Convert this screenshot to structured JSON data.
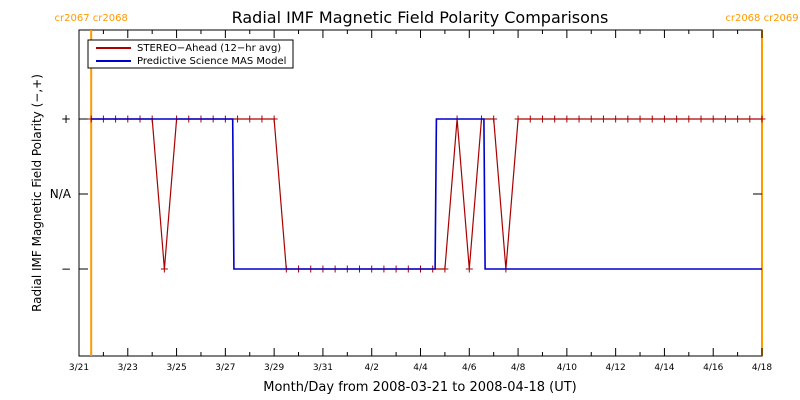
{
  "chart_data": {
    "type": "line",
    "title": "Radial IMF Magnetic Field Polarity Comparisons",
    "xlabel": "Month/Day from 2008-03-21 to 2008-04-18 (UT)",
    "ylabel": "Radial IMF Magnetic Field Polarity (−,+)",
    "x_range": [
      "2008-03-21",
      "2008-04-18"
    ],
    "x_tick_labels": [
      "3/21",
      "3/23",
      "3/25",
      "3/27",
      "3/29",
      "3/31",
      "4/2",
      "4/4",
      "4/6",
      "4/8",
      "4/10",
      "4/12",
      "4/14",
      "4/16",
      "4/18"
    ],
    "y_categories": [
      "−",
      "N/A",
      "+"
    ],
    "y_tick_labels": [
      "+",
      "N/A",
      "−"
    ],
    "legend_position": "top-left",
    "carrington_markers": [
      {
        "date": "2008-03-21T12:00",
        "labels": [
          "cr2067",
          "cr2068"
        ],
        "color": "#ff9900"
      },
      {
        "date": "2008-04-18T00:00",
        "labels": [
          "cr2068",
          "cr2069"
        ],
        "color": "#ff9900"
      }
    ],
    "series": [
      {
        "name": "STEREO−Ahead (12−hr avg)",
        "color": "#aa0000",
        "markers": true,
        "x": [
          0.5,
          1,
          1.5,
          2,
          2.5,
          3,
          3.5,
          4,
          4.5,
          5,
          5.5,
          6,
          6.5,
          7,
          7.5,
          8,
          8.5,
          9,
          9.5,
          10,
          10.5,
          11,
          11.5,
          12,
          12.5,
          13,
          13.5,
          14,
          14.5,
          15,
          15.5,
          16,
          16.5,
          17,
          17.5,
          18,
          18.5,
          19,
          19.5,
          20,
          20.5,
          21,
          21.5,
          22,
          22.5,
          23,
          23.5,
          24,
          24.5,
          25,
          25.5,
          26,
          26.5,
          27,
          27.5,
          28
        ],
        "y": [
          1,
          1,
          1,
          1,
          1,
          1,
          -1,
          1,
          1,
          1,
          1,
          1,
          1,
          1,
          1,
          1,
          -1,
          -1,
          -1,
          -1,
          -1,
          -1,
          -1,
          -1,
          -1,
          -1,
          -1,
          -1,
          -1,
          -1,
          1,
          -1,
          1,
          1,
          -1,
          1,
          1,
          1,
          1,
          1,
          1,
          1,
          1,
          1,
          1,
          1,
          1,
          1,
          1,
          1,
          1,
          1,
          1,
          1,
          1,
          1
        ]
      },
      {
        "name": "Predictive Science MAS Model",
        "color": "#0000cc",
        "markers": false,
        "x": [
          0.5,
          6.3,
          6.35,
          28
        ],
        "y": [
          1,
          1,
          -1,
          -1
        ],
        "x_extra": [
          14.6,
          14.65,
          16.6,
          16.65
        ],
        "y_extra": [
          -1,
          1,
          1,
          -1
        ]
      }
    ]
  }
}
